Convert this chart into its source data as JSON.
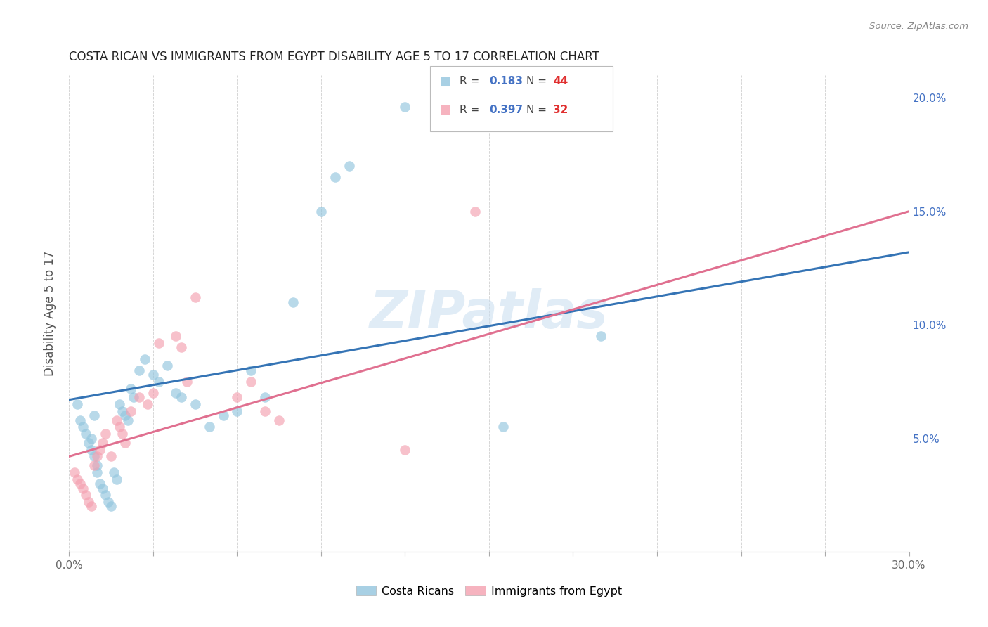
{
  "title": "COSTA RICAN VS IMMIGRANTS FROM EGYPT DISABILITY AGE 5 TO 17 CORRELATION CHART",
  "source": "Source: ZipAtlas.com",
  "ylabel": "Disability Age 5 to 17",
  "xlim": [
    0.0,
    0.3
  ],
  "ylim": [
    0.0,
    0.21
  ],
  "xticks": [
    0.0,
    0.03,
    0.06,
    0.09,
    0.12,
    0.15,
    0.18,
    0.21,
    0.24,
    0.27,
    0.3
  ],
  "yticks": [
    0.0,
    0.05,
    0.1,
    0.15,
    0.2
  ],
  "blue_color": "#92c5de",
  "pink_color": "#f4a0b0",
  "blue_line_color": "#3574b5",
  "pink_line_color": "#e07090",
  "watermark": "ZIPatlas",
  "blue_scatter_x": [
    0.003,
    0.004,
    0.005,
    0.006,
    0.007,
    0.008,
    0.008,
    0.009,
    0.009,
    0.01,
    0.01,
    0.011,
    0.012,
    0.013,
    0.014,
    0.015,
    0.016,
    0.017,
    0.018,
    0.019,
    0.02,
    0.021,
    0.022,
    0.023,
    0.025,
    0.027,
    0.03,
    0.032,
    0.035,
    0.038,
    0.04,
    0.045,
    0.05,
    0.055,
    0.06,
    0.065,
    0.07,
    0.08,
    0.09,
    0.095,
    0.1,
    0.12,
    0.155,
    0.19
  ],
  "blue_scatter_y": [
    0.065,
    0.058,
    0.055,
    0.052,
    0.048,
    0.045,
    0.05,
    0.06,
    0.042,
    0.038,
    0.035,
    0.03,
    0.028,
    0.025,
    0.022,
    0.02,
    0.035,
    0.032,
    0.065,
    0.062,
    0.06,
    0.058,
    0.072,
    0.068,
    0.08,
    0.085,
    0.078,
    0.075,
    0.082,
    0.07,
    0.068,
    0.065,
    0.055,
    0.06,
    0.062,
    0.08,
    0.068,
    0.11,
    0.15,
    0.165,
    0.17,
    0.196,
    0.055,
    0.095
  ],
  "pink_scatter_x": [
    0.002,
    0.003,
    0.004,
    0.005,
    0.006,
    0.007,
    0.008,
    0.009,
    0.01,
    0.011,
    0.012,
    0.013,
    0.015,
    0.017,
    0.018,
    0.019,
    0.02,
    0.022,
    0.025,
    0.028,
    0.03,
    0.032,
    0.038,
    0.04,
    0.042,
    0.045,
    0.06,
    0.065,
    0.07,
    0.075,
    0.12,
    0.145
  ],
  "pink_scatter_y": [
    0.035,
    0.032,
    0.03,
    0.028,
    0.025,
    0.022,
    0.02,
    0.038,
    0.042,
    0.045,
    0.048,
    0.052,
    0.042,
    0.058,
    0.055,
    0.052,
    0.048,
    0.062,
    0.068,
    0.065,
    0.07,
    0.092,
    0.095,
    0.09,
    0.075,
    0.112,
    0.068,
    0.075,
    0.062,
    0.058,
    0.045,
    0.15
  ],
  "blue_line_x0": 0.0,
  "blue_line_y0": 0.067,
  "blue_line_x1": 0.3,
  "blue_line_y1": 0.132,
  "pink_line_x0": 0.0,
  "pink_line_y0": 0.042,
  "pink_line_x1": 0.3,
  "pink_line_y1": 0.15,
  "background_color": "#ffffff",
  "grid_color": "#cccccc",
  "title_color": "#222222",
  "axis_label_color": "#555555",
  "watermark_color": "#c8ddf0",
  "legend_label1": "Costa Ricans",
  "legend_label2": "Immigrants from Egypt",
  "legend_blue_r_val": "0.183",
  "legend_blue_n_val": "44",
  "legend_pink_r_val": "0.397",
  "legend_pink_n_val": "32",
  "r_color": "#4472c4",
  "n_color": "#e03030"
}
